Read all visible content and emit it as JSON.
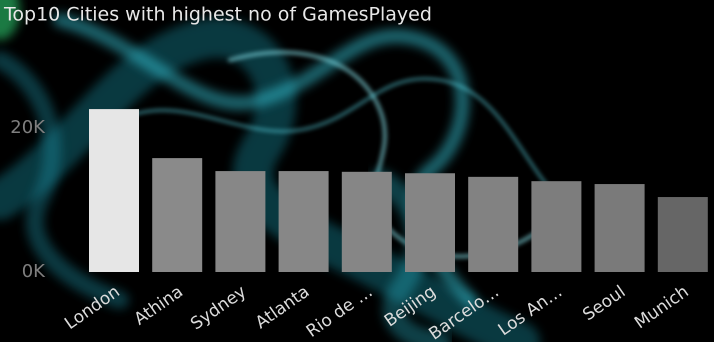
{
  "chart_data": {
    "type": "bar",
    "title": "Top10 Cities with highest no of GamesPlayed",
    "categories": [
      "London",
      "Athina",
      "Sydney",
      "Atlanta",
      "Rio de …",
      "Beijing",
      "Barcelo…",
      "Los An…",
      "Seoul",
      "Munich"
    ],
    "values": [
      22600,
      15800,
      14000,
      14000,
      13900,
      13700,
      13200,
      12600,
      12200,
      10400
    ],
    "colors": [
      "#e6e6e6",
      "#8a8a8a",
      "#878787",
      "#878787",
      "#868686",
      "#858585",
      "#828282",
      "#7d7d7d",
      "#7a7a7a",
      "#666666"
    ],
    "ylim": [
      0,
      24000
    ],
    "yticks": [
      {
        "value": 0,
        "label": "0K"
      },
      {
        "value": 20000,
        "label": "20K"
      }
    ],
    "grid": false
  }
}
